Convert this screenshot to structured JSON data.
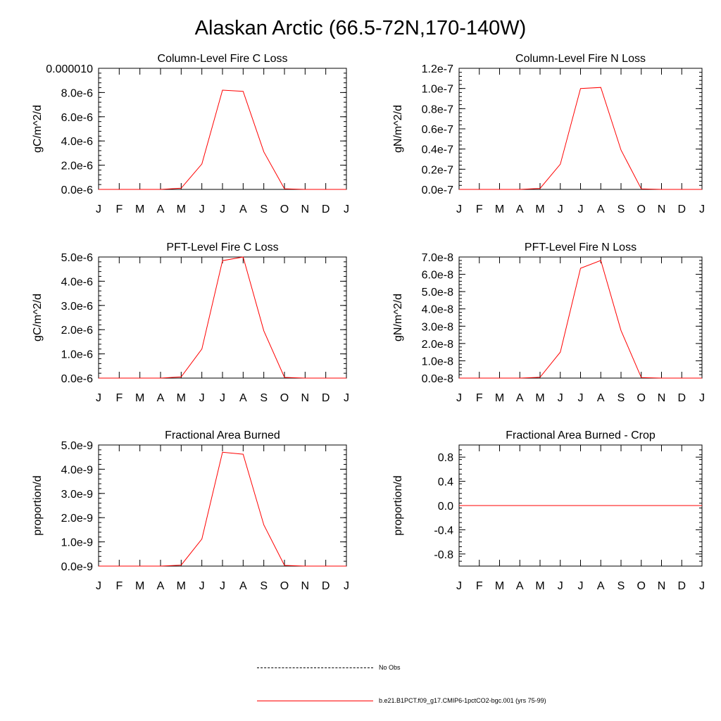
{
  "figure": {
    "title": "Alaskan Arctic (66.5-72N,170-140W)"
  },
  "legend": [
    {
      "label": "No Obs",
      "style": "dashed",
      "color": "#000000"
    },
    {
      "label": "b.e21.B1PCT.f09_g17.CMIP6-1pctCO2-bgc.001 (yrs 75-99)",
      "style": "solid",
      "color": "#ff0000"
    }
  ],
  "chart_data": [
    {
      "type": "line",
      "title": "Column-Level Fire C Loss",
      "xlabel": "",
      "ylabel": "gC/m^2/d",
      "categories": [
        "J",
        "F",
        "M",
        "A",
        "M",
        "J",
        "J",
        "A",
        "S",
        "O",
        "N",
        "D",
        "J"
      ],
      "ylim": [
        0,
        1e-05
      ],
      "yticks": [
        0,
        2e-06,
        4e-06,
        6e-06,
        8e-06,
        1e-05
      ],
      "ytick_labels": [
        "0.0e-6",
        "2.0e-6",
        "4.0e-6",
        "6.0e-6",
        "8.0e-6",
        "0.000010"
      ],
      "series": [
        {
          "color": "#ff0000",
          "values": [
            0,
            0,
            0,
            0,
            1e-07,
            2.1e-06,
            8.2e-06,
            8.1e-06,
            3.1e-06,
            5e-08,
            0,
            0,
            0
          ]
        }
      ]
    },
    {
      "type": "line",
      "title": "Column-Level Fire N Loss",
      "xlabel": "",
      "ylabel": "gN/m^2/d",
      "categories": [
        "J",
        "F",
        "M",
        "A",
        "M",
        "J",
        "J",
        "A",
        "S",
        "O",
        "N",
        "D",
        "J"
      ],
      "ylim": [
        0,
        1.2e-07
      ],
      "yticks": [
        0,
        2e-08,
        4e-08,
        6e-08,
        8e-08,
        1e-07,
        1.2e-07
      ],
      "ytick_labels": [
        "0.0e-7",
        "0.2e-7",
        "0.4e-7",
        "0.6e-7",
        "0.8e-7",
        "1.0e-7",
        "1.2e-7"
      ],
      "series": [
        {
          "color": "#ff0000",
          "values": [
            0,
            0,
            0,
            0,
            1e-09,
            2.5e-08,
            1e-07,
            1.01e-07,
            3.9e-08,
            5e-10,
            0,
            0,
            0
          ]
        }
      ]
    },
    {
      "type": "line",
      "title": "PFT-Level Fire C Loss",
      "xlabel": "",
      "ylabel": "gC/m^2/d",
      "categories": [
        "J",
        "F",
        "M",
        "A",
        "M",
        "J",
        "J",
        "A",
        "S",
        "O",
        "N",
        "D",
        "J"
      ],
      "ylim": [
        0,
        5e-06
      ],
      "yticks": [
        0,
        1e-06,
        2e-06,
        3e-06,
        4e-06,
        5e-06
      ],
      "ytick_labels": [
        "0.0e-6",
        "1.0e-6",
        "2.0e-6",
        "3.0e-6",
        "4.0e-6",
        "5.0e-6"
      ],
      "series": [
        {
          "color": "#ff0000",
          "values": [
            0,
            0,
            0,
            0,
            5e-08,
            1.2e-06,
            4.85e-06,
            5e-06,
            1.95e-06,
            3e-08,
            0,
            0,
            0
          ]
        }
      ]
    },
    {
      "type": "line",
      "title": "PFT-Level Fire N Loss",
      "xlabel": "",
      "ylabel": "gN/m^2/d",
      "categories": [
        "J",
        "F",
        "M",
        "A",
        "M",
        "J",
        "J",
        "A",
        "S",
        "O",
        "N",
        "D",
        "J"
      ],
      "ylim": [
        0,
        7e-08
      ],
      "yticks": [
        0,
        1e-08,
        2e-08,
        3e-08,
        4e-08,
        5e-08,
        6e-08,
        7e-08
      ],
      "ytick_labels": [
        "0.0e-8",
        "1.0e-8",
        "2.0e-8",
        "3.0e-8",
        "4.0e-8",
        "5.0e-8",
        "6.0e-8",
        "7.0e-8"
      ],
      "series": [
        {
          "color": "#ff0000",
          "values": [
            0,
            0,
            0,
            0,
            5e-10,
            1.5e-08,
            6.35e-08,
            6.8e-08,
            2.75e-08,
            3e-10,
            0,
            0,
            0
          ]
        }
      ]
    },
    {
      "type": "line",
      "title": "Fractional Area Burned",
      "xlabel": "",
      "ylabel": "proportion/d",
      "categories": [
        "J",
        "F",
        "M",
        "A",
        "M",
        "J",
        "J",
        "A",
        "S",
        "O",
        "N",
        "D",
        "J"
      ],
      "ylim": [
        0,
        5e-09
      ],
      "yticks": [
        0,
        1e-09,
        2e-09,
        3e-09,
        4e-09,
        5e-09
      ],
      "ytick_labels": [
        "0.0e-9",
        "1.0e-9",
        "2.0e-9",
        "3.0e-9",
        "4.0e-9",
        "5.0e-9"
      ],
      "series": [
        {
          "color": "#ff0000",
          "values": [
            0,
            0,
            0,
            0,
            4e-11,
            1.12e-09,
            4.7e-09,
            4.62e-09,
            1.7e-09,
            3e-11,
            0,
            0,
            0
          ]
        }
      ]
    },
    {
      "type": "line",
      "title": "Fractional Area Burned - Crop",
      "xlabel": "",
      "ylabel": "proportion/d",
      "categories": [
        "J",
        "F",
        "M",
        "A",
        "M",
        "J",
        "J",
        "A",
        "S",
        "O",
        "N",
        "D",
        "J"
      ],
      "ylim": [
        -1,
        1
      ],
      "yticks": [
        -0.8,
        -0.4,
        0,
        0.4,
        0.8
      ],
      "ytick_labels": [
        "-0.8",
        "-0.4",
        "0.0",
        "0.4",
        "0.8"
      ],
      "series": [
        {
          "color": "#ff0000",
          "values": [
            0,
            0,
            0,
            0,
            0,
            0,
            0,
            0,
            0,
            0,
            0,
            0,
            0
          ]
        }
      ]
    }
  ]
}
